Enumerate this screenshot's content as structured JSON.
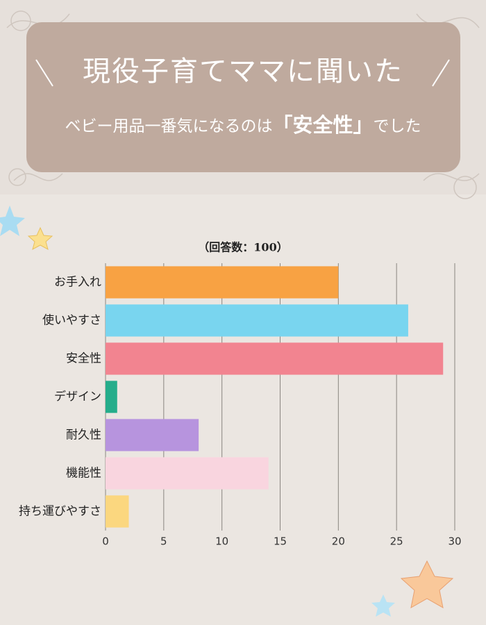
{
  "chart_data": {
    "type": "bar",
    "orientation": "horizontal",
    "title": "現役子育てママに聞いた",
    "subtitle": [
      "ベビー用品一番気になるのは",
      "「安全性」",
      "でした"
    ],
    "annotation": "（回答数：100）",
    "categories": [
      "お手入れ",
      "使いやすさ",
      "安全性",
      "デザイン",
      "耐久性",
      "機能性",
      "持ち運びやすさ"
    ],
    "values": [
      20,
      26,
      29,
      1,
      8,
      14,
      2
    ],
    "colors": [
      "#f8a243",
      "#79d5ef",
      "#f28490",
      "#25ad8b",
      "#b794de",
      "#f9d5df",
      "#fbd77f"
    ],
    "xlim": [
      0,
      30
    ],
    "xticks": [
      0,
      5,
      10,
      15,
      20,
      25,
      30
    ],
    "grid": true
  }
}
